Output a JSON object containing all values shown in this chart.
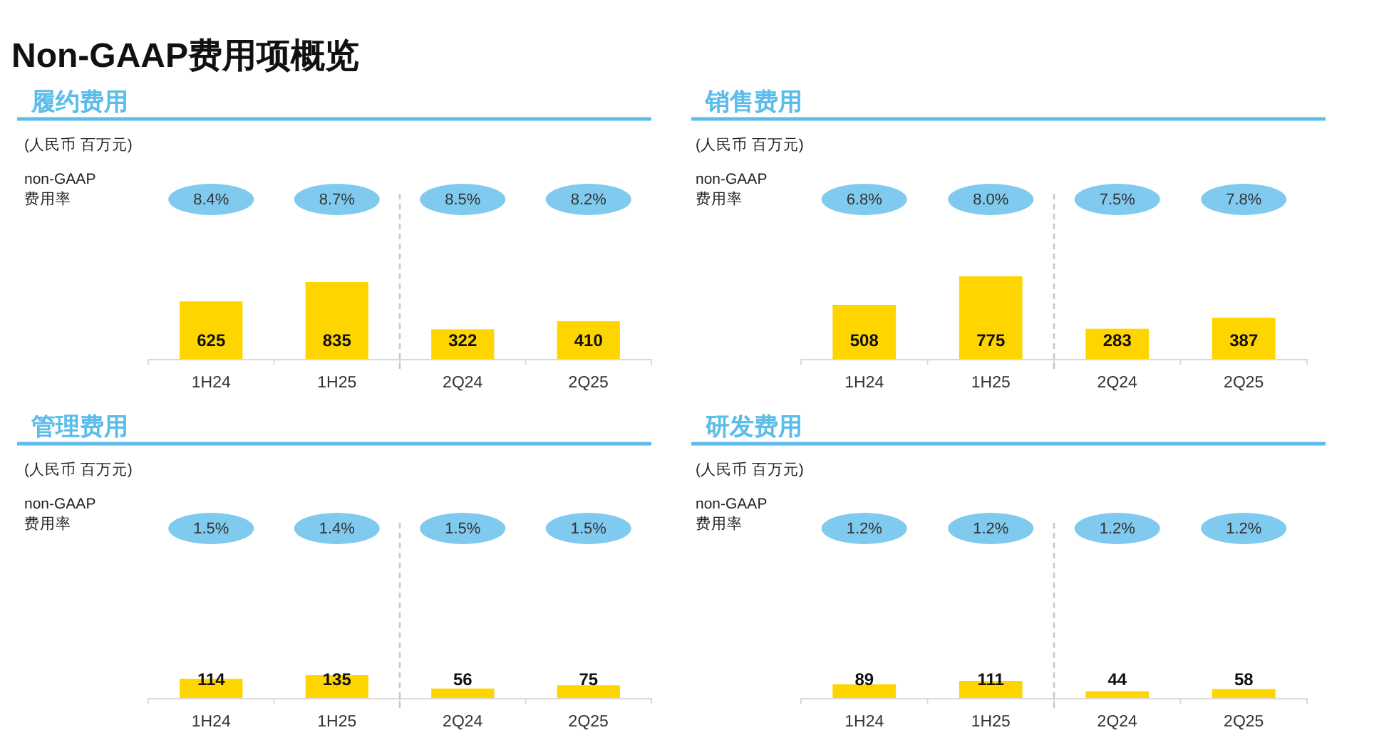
{
  "chart_data": [
    {
      "type": "bar",
      "title": "Non-GAAP费用项概览",
      "subtitle": "履约费用",
      "categories": [
        "1H24",
        "1H25",
        "2Q24",
        "2Q25"
      ],
      "values": [
        625,
        835,
        322,
        410
      ],
      "color": "#ffd500",
      "data_labels": true,
      "tick_labels": "x",
      "annotations": [
        "(人民币 百万元)",
        "non-GAAP 费用率",
        "8.4%",
        "8.7%",
        "8.5%",
        "8.2%"
      ]
    },
    {
      "type": "bar",
      "subtitle": "销售费用",
      "categories": [
        "1H24",
        "1H25",
        "2Q24",
        "2Q25"
      ],
      "values": [
        508,
        775,
        283,
        387
      ],
      "color": "#ffd500",
      "data_labels": true,
      "tick_labels": "x",
      "annotations": [
        "(人民币 百万元)",
        "non-GAAP 费用率",
        "6.8%",
        "8.0%",
        "7.5%",
        "7.8%"
      ]
    },
    {
      "type": "bar",
      "subtitle": "管理费用",
      "categories": [
        "1H24",
        "1H25",
        "2Q24",
        "2Q25"
      ],
      "values": [
        114,
        135,
        56,
        75
      ],
      "color": "#ffd500",
      "data_labels": true,
      "tick_labels": "x",
      "annotations": [
        "(人民币 百万元)",
        "non-GAAP 费用率",
        "1.5%",
        "1.4%",
        "1.5%",
        "1.5%"
      ]
    },
    {
      "type": "bar",
      "subtitle": "研发费用",
      "categories": [
        "1H24",
        "1H25",
        "2Q24",
        "2Q25"
      ],
      "values": [
        89,
        111,
        44,
        58
      ],
      "color": "#ffd500",
      "data_labels": true,
      "tick_labels": "x",
      "annotations": [
        "(人民币 百万元)",
        "non-GAAP 费用率",
        "1.2%",
        "1.2%",
        "1.2%",
        "1.2%"
      ]
    }
  ]
}
